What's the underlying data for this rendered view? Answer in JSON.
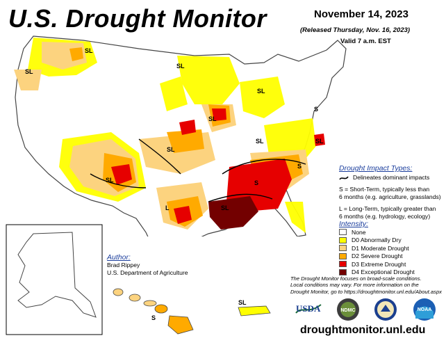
{
  "header": {
    "title": "U.S. Drought Monitor",
    "date": "November 14, 2023",
    "released": "(Released Thursday, Nov. 16, 2023)",
    "valid": "Valid 7 a.m. EST"
  },
  "impact_types": {
    "title": "Drought Impact Types:",
    "delineates": "Delineates dominant impacts",
    "short_term_1": "S = Short-Term, typically less than",
    "short_term_2": "6 months (e.g. agriculture, grasslands)",
    "long_term_1": "L = Long-Term, typically greater than",
    "long_term_2": "6 months (e.g. hydrology, ecology)"
  },
  "intensity": {
    "title": "Intensity:",
    "categories": [
      {
        "label": "None",
        "color": "#ffffff"
      },
      {
        "label": "D0 Abnormally Dry",
        "color": "#ffff00"
      },
      {
        "label": "D1 Moderate Drought",
        "color": "#fcd37f"
      },
      {
        "label": "D2 Severe Drought",
        "color": "#ffaa00"
      },
      {
        "label": "D3 Extreme Drought",
        "color": "#e60000"
      },
      {
        "label": "D4 Exceptional Drought",
        "color": "#730000"
      }
    ]
  },
  "author": {
    "title": "Author:",
    "name": "Brad Rippey",
    "org": "U.S. Department of Agriculture"
  },
  "footnote": {
    "line1": "The Drought Monitor focuses on broad-scale conditions.",
    "line2": "Local conditions may vary. For more information on the",
    "line3": "Drought Monitor, go to https://droughtmonitor.unl.edu/About.aspx"
  },
  "logos": {
    "usda": "USDA",
    "ndmc": "NDMC",
    "noaa": "NOAA"
  },
  "website": "droughtmonitor.unl.edu",
  "map_labels": {
    "sl": "SL",
    "s": "S",
    "l": "L"
  }
}
